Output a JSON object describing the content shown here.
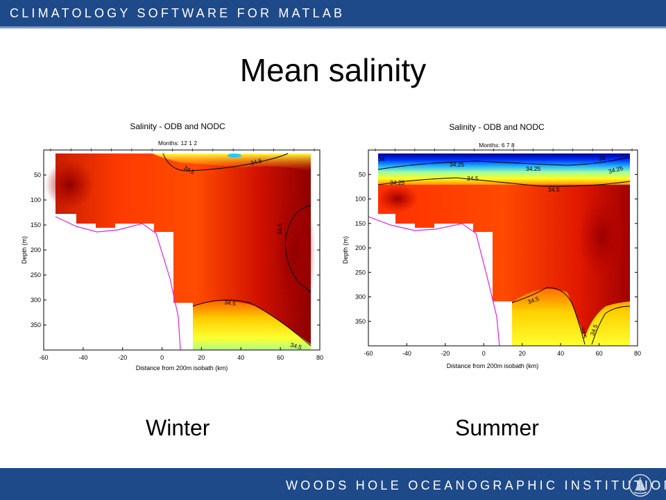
{
  "header": {
    "title": "CLIMATOLOGY SOFTWARE FOR MATLAB"
  },
  "slide": {
    "title": "Mean salinity",
    "left_caption": "Winter",
    "right_caption": "Summer"
  },
  "footer": {
    "institution": "WOODS HOLE OCEANOGRAPHIC INSTITUTION"
  },
  "chart_data": [
    {
      "type": "heatmap",
      "title": "Salinity - ODB and NODC",
      "subtitle": "Months: 12 1 2",
      "xlabel": "Distance from 200m isobath (km)",
      "ylabel": "Depth (m)",
      "xlim": [
        -60,
        80
      ],
      "ylim": [
        400,
        0
      ],
      "y_reversed": true,
      "xticks": [
        -60,
        -40,
        -20,
        0,
        20,
        40,
        60,
        80
      ],
      "yticks": [
        50,
        100,
        150,
        200,
        250,
        300,
        350
      ],
      "contour_labels": [
        "34.5",
        "34.5",
        "34.5",
        "34.5",
        "34.5"
      ],
      "colors": {
        "high": "#8b0000",
        "mid": "#ff4500",
        "low": "#ffff33",
        "fresh": "#33ccff",
        "isobath": "#e020e0"
      }
    },
    {
      "type": "heatmap",
      "title": "Salinity - ODB and NODC",
      "subtitle": "Months: 6 7 8",
      "xlabel": "Distance from 200m isobath (km)",
      "ylabel": "Depth (m)",
      "xlim": [
        -60,
        80
      ],
      "ylim": [
        400,
        0
      ],
      "y_reversed": true,
      "xticks": [
        -60,
        -40,
        -20,
        0,
        20,
        40,
        60,
        80
      ],
      "yticks": [
        50,
        100,
        150,
        200,
        250,
        300,
        350
      ],
      "contour_labels": [
        "34",
        "34.25",
        "34.25",
        "34.25",
        "34",
        "34.25",
        "34.5",
        "34.5",
        "34.5",
        "34.5",
        "34.5",
        "34.5"
      ],
      "colors": {
        "high": "#8b0000",
        "mid": "#ff4500",
        "low": "#ffff33",
        "fresh": "#0000aa",
        "isobath": "#e020e0"
      }
    }
  ]
}
